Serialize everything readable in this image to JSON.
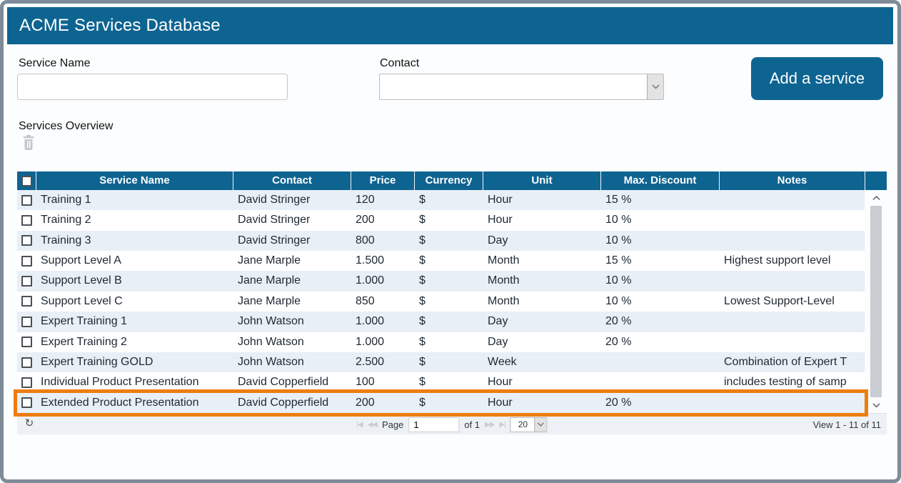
{
  "colors": {
    "brand_teal": "#0e6491",
    "highlight_orange": "#ed7d0d",
    "row_alt_blue": "#e9eff6"
  },
  "window": {
    "title": "ACME Services Database"
  },
  "form": {
    "service_name": {
      "label": "Service Name",
      "value": ""
    },
    "contact": {
      "label": "Contact",
      "value": ""
    },
    "add_button_label": "Add a service"
  },
  "overview": {
    "label": "Services Overview",
    "delete_icon": "trash-icon"
  },
  "table": {
    "headers": [
      "Service Name",
      "Contact",
      "Price",
      "Currency",
      "Unit",
      "Max. Discount",
      "Notes"
    ],
    "rows": [
      {
        "service_name": "Training 1",
        "contact": "David Stringer",
        "price": "120",
        "currency": "$",
        "unit": "Hour",
        "max_discount": "15 %",
        "notes": "",
        "checked": false,
        "highlighted": false
      },
      {
        "service_name": "Training 2",
        "contact": "David Stringer",
        "price": "200",
        "currency": "$",
        "unit": "Hour",
        "max_discount": "10 %",
        "notes": "",
        "checked": false,
        "highlighted": false
      },
      {
        "service_name": "Training 3",
        "contact": "David Stringer",
        "price": "800",
        "currency": "$",
        "unit": "Day",
        "max_discount": "10 %",
        "notes": "",
        "checked": false,
        "highlighted": false
      },
      {
        "service_name": "Support Level A",
        "contact": "Jane Marple",
        "price": "1.500",
        "currency": "$",
        "unit": "Month",
        "max_discount": "15 %",
        "notes": "Highest support level",
        "checked": false,
        "highlighted": false
      },
      {
        "service_name": "Support Level B",
        "contact": "Jane Marple",
        "price": "1.000",
        "currency": "$",
        "unit": "Month",
        "max_discount": "10 %",
        "notes": "",
        "checked": false,
        "highlighted": false
      },
      {
        "service_name": "Support Level C",
        "contact": "Jane Marple",
        "price": "850",
        "currency": "$",
        "unit": "Month",
        "max_discount": "10 %",
        "notes": "Lowest Support-Level",
        "checked": false,
        "highlighted": false
      },
      {
        "service_name": "Expert Training 1",
        "contact": "John Watson",
        "price": "1.000",
        "currency": "$",
        "unit": "Day",
        "max_discount": "20 %",
        "notes": "",
        "checked": false,
        "highlighted": false
      },
      {
        "service_name": "Expert Training 2",
        "contact": "John Watson",
        "price": "1.000",
        "currency": "$",
        "unit": "Day",
        "max_discount": "20 %",
        "notes": "",
        "checked": false,
        "highlighted": false
      },
      {
        "service_name": "Expert Training GOLD",
        "contact": "John Watson",
        "price": "2.500",
        "currency": "$",
        "unit": "Week",
        "max_discount": "",
        "notes": "Combination of Expert T",
        "checked": false,
        "highlighted": false
      },
      {
        "service_name": "Individual Product Presentation",
        "contact": "David Copperfield",
        "price": "100",
        "currency": "$",
        "unit": "Hour",
        "max_discount": "",
        "notes": "includes testing of samp",
        "checked": false,
        "highlighted": false
      },
      {
        "service_name": "Extended Product Presentation",
        "contact": "David Copperfield",
        "price": "200",
        "currency": "$",
        "unit": "Hour",
        "max_discount": "20 %",
        "notes": "",
        "checked": false,
        "highlighted": true
      }
    ]
  },
  "pager": {
    "refresh_icon": "refresh-icon",
    "first_icon": "first-page-icon",
    "prev_icon": "previous-page-icon",
    "next_icon": "next-page-icon",
    "last_icon": "last-page-icon",
    "page_label": "Page",
    "page_value": "1",
    "of_text": "of 1",
    "page_size_value": "20",
    "view_status": "View 1 - 11 of 11"
  }
}
